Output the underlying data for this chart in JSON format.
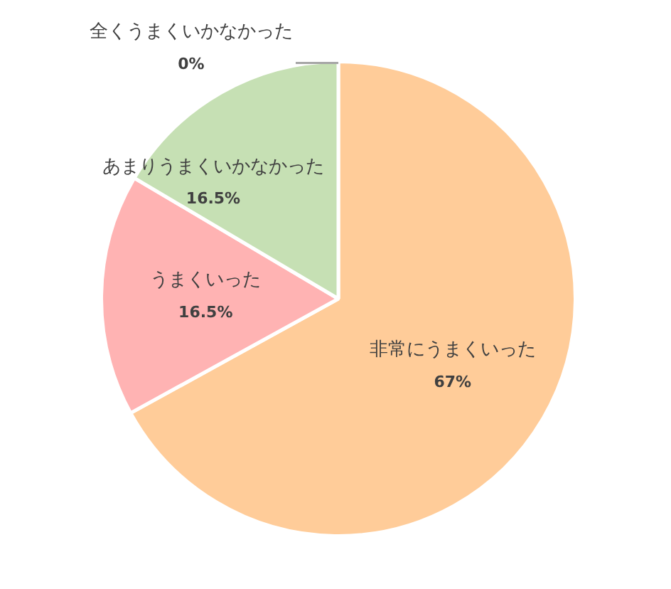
{
  "chart_data": {
    "type": "pie",
    "categories": [
      "非常にうまくいった",
      "うまくいった",
      "あまりうまくいかなかった",
      "全くうまくいかなかった"
    ],
    "values": [
      67,
      16.5,
      16.5,
      0
    ],
    "colors": [
      "#ffcc99",
      "#ffb3b3",
      "#c6e0b4",
      "#a6a6a6"
    ],
    "value_labels": [
      "67%",
      "16.5%",
      "16.5%",
      "0%"
    ]
  }
}
